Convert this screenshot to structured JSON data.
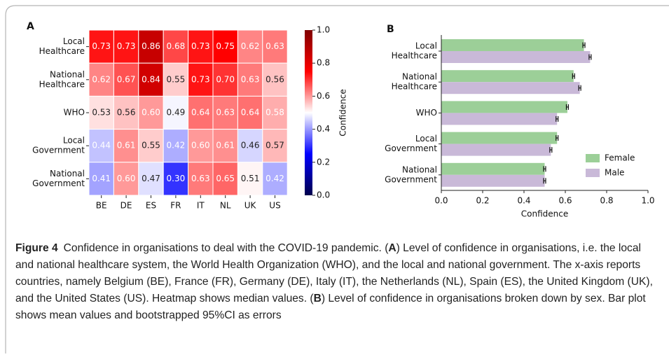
{
  "chart_data": [
    {
      "type": "heatmap",
      "panel_label": "A",
      "rows": [
        [
          "Local",
          "Healthcare"
        ],
        [
          "National",
          "Healthcare"
        ],
        [
          "WHO"
        ],
        [
          "Local",
          "Government"
        ],
        [
          "National",
          "Government"
        ]
      ],
      "columns": [
        "BE",
        "DE",
        "ES",
        "FR",
        "IT",
        "NL",
        "UK",
        "US"
      ],
      "values": [
        [
          0.73,
          0.73,
          0.86,
          0.68,
          0.73,
          0.75,
          0.62,
          0.63
        ],
        [
          0.62,
          0.67,
          0.84,
          0.55,
          0.73,
          0.7,
          0.63,
          0.56
        ],
        [
          0.53,
          0.56,
          0.6,
          0.49,
          0.64,
          0.63,
          0.64,
          0.58
        ],
        [
          0.44,
          0.61,
          0.55,
          0.42,
          0.6,
          0.61,
          0.46,
          0.57
        ],
        [
          0.41,
          0.6,
          0.47,
          0.3,
          0.63,
          0.65,
          0.51,
          0.42
        ]
      ],
      "value_labels": [
        [
          "0.73",
          "0.73",
          "0.86",
          "0.68",
          "0.73",
          "0.75",
          "0.62",
          "0.63"
        ],
        [
          "0.62",
          "0.67",
          "0.84",
          "0.55",
          "0.73",
          "0.70",
          "0.63",
          "0.56"
        ],
        [
          "0.53",
          "0.56",
          "0.60",
          "0.49",
          "0.64",
          "0.63",
          "0.64",
          "0.58"
        ],
        [
          "0.44",
          "0.61",
          "0.55",
          "0.42",
          "0.60",
          "0.61",
          "0.46",
          "0.57"
        ],
        [
          "0.41",
          "0.60",
          "0.47",
          "0.30",
          "0.63",
          "0.65",
          "0.51",
          "0.42"
        ]
      ],
      "colormap": [
        "#00004c",
        "#0000ff",
        "#ffffff",
        "#ff0000",
        "#800000"
      ],
      "clim": [
        0,
        1
      ],
      "cticks": [
        {
          "value": 0,
          "label": "0.0"
        },
        {
          "value": 0.2,
          "label": "0.2"
        },
        {
          "value": 0.4,
          "label": "0.4"
        },
        {
          "value": 0.6,
          "label": "0.6"
        },
        {
          "value": 0.8,
          "label": "0.8"
        },
        {
          "value": 1,
          "label": "1.0"
        }
      ],
      "colorbar_label": "Confidence"
    },
    {
      "type": "hbar",
      "panel_label": "B",
      "categories": [
        [
          "Local",
          "Healthcare"
        ],
        [
          "National",
          "Healthcare"
        ],
        [
          "WHO"
        ],
        [
          "Local",
          "Government"
        ],
        [
          "National",
          "Government"
        ]
      ],
      "series": [
        {
          "name": "Female",
          "color": "#9ccf98",
          "values": [
            0.69,
            0.64,
            0.61,
            0.56,
            0.5
          ],
          "errors": [
            0.005,
            0.005,
            0.005,
            0.005,
            0.005
          ]
        },
        {
          "name": "Male",
          "color": "#c9b9d8",
          "values": [
            0.72,
            0.67,
            0.56,
            0.53,
            0.5
          ],
          "errors": [
            0.005,
            0.005,
            0.005,
            0.005,
            0.005
          ]
        }
      ],
      "xlim": [
        0,
        1
      ],
      "xticks": [
        {
          "value": 0,
          "label": "0.0"
        },
        {
          "value": 0.2,
          "label": "0.2"
        },
        {
          "value": 0.4,
          "label": "0.4"
        },
        {
          "value": 0.6,
          "label": "0.6"
        },
        {
          "value": 0.8,
          "label": "0.8"
        },
        {
          "value": 1,
          "label": "1.0"
        }
      ],
      "xlabel": "Confidence",
      "legend": "lower right"
    }
  ],
  "caption": [
    {
      "text": "Figure 4",
      "bold": true
    },
    {
      "text": "Confidence in organisations to deal with the COVID-19 pandemic. ("
    },
    {
      "text": "A",
      "bold": true
    },
    {
      "text": ") Level of confidence in organisations, i.e. the local and national healthcare system, the World Health Organization (WHO), and the local and national government. The x-axis reports countries, namely Belgium (BE), France (FR), Germany (DE), Italy (IT), the Netherlands (NL), Spain (ES), the United Kingdom (UK), and the United States (US). Heatmap shows median values. ("
    },
    {
      "text": "B",
      "bold": true
    },
    {
      "text": ") Level of confidence in organisations broken down by sex. Bar plot shows mean values and bootstrapped 95%CI as errors"
    }
  ]
}
